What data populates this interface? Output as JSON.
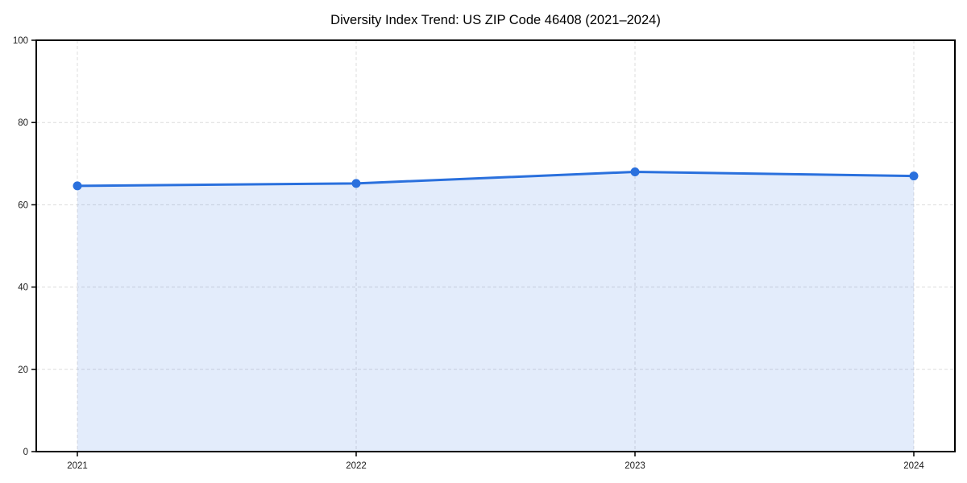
{
  "chart_data": {
    "type": "area",
    "title": "Diversity Index Trend: US ZIP Code 46408 (2021–2024)",
    "categories": [
      "2021",
      "2022",
      "2023",
      "2024"
    ],
    "series": [
      {
        "name": "Diversity Index",
        "values": [
          64.6,
          65.2,
          68.0,
          67.0
        ]
      }
    ],
    "xlabel": "",
    "ylabel": "",
    "ylim": [
      0,
      100
    ],
    "y_ticks": [
      0,
      20,
      40,
      60,
      80,
      100
    ],
    "grid": true,
    "grid_style": "dashed",
    "legend": false,
    "marker": "circle",
    "colors": {
      "line": "#2a70dd",
      "marker": "#2a70dd",
      "fill": "rgba(42,112,221,0.13)",
      "grid": "#dcdcdc",
      "spine": "#000000",
      "tick_label": "#1a1a1a",
      "title": "#000000",
      "background": "#ffffff"
    }
  }
}
